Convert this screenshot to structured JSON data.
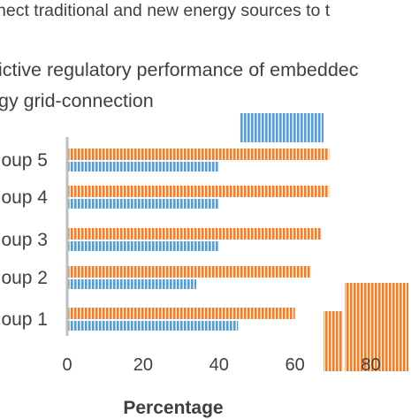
{
  "chart_data": {
    "type": "bar",
    "orientation": "horizontal",
    "header_line": "nect traditional and new energy sources to t",
    "subtitle_lines": [
      "ictive regulatory performance of embeddec",
      "gy grid-connection"
    ],
    "categories": [
      "oup 1",
      "oup 2",
      "oup 3",
      "oup 4",
      "oup 5"
    ],
    "series": [
      {
        "values": [
          60,
          64,
          67,
          69,
          69
        ],
        "color": "#ED7D31"
      },
      {
        "values": [
          45,
          34,
          40,
          40,
          40
        ],
        "color": "#5B9BD5"
      }
    ],
    "legend": [
      {
        "color": "#5B9BD5"
      },
      {
        "color": "#ED7D31"
      }
    ],
    "xlabel": "Percentage",
    "xlim": [
      0,
      85
    ],
    "xticks": [
      "0",
      "20",
      "40",
      "60",
      "80"
    ],
    "grid": false,
    "legend_placement": "top-right",
    "pattern": "vertical-stripes"
  }
}
